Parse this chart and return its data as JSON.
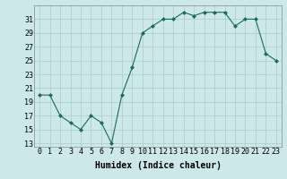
{
  "x": [
    0,
    1,
    2,
    3,
    4,
    5,
    6,
    7,
    8,
    9,
    10,
    11,
    12,
    13,
    14,
    15,
    16,
    17,
    18,
    19,
    20,
    21,
    22,
    23
  ],
  "y": [
    20,
    20,
    17,
    16,
    15,
    17,
    16,
    13,
    20,
    24,
    29,
    30,
    31,
    31,
    32,
    31.5,
    32,
    32,
    32,
    30,
    31,
    31,
    26,
    25
  ],
  "line_color": "#1a6b5a",
  "marker_color": "#1a6b5a",
  "bg_color": "#cce8e8",
  "grid_color": "#aacccc",
  "xlabel": "Humidex (Indice chaleur)",
  "yticks": [
    13,
    15,
    17,
    19,
    21,
    23,
    25,
    27,
    29,
    31
  ],
  "xticks": [
    0,
    1,
    2,
    3,
    4,
    5,
    6,
    7,
    8,
    9,
    10,
    11,
    12,
    13,
    14,
    15,
    16,
    17,
    18,
    19,
    20,
    21,
    22,
    23
  ],
  "ylim": [
    12.5,
    33.0
  ],
  "xlim": [
    -0.5,
    23.5
  ],
  "axis_fontsize": 6,
  "xlabel_fontsize": 7
}
